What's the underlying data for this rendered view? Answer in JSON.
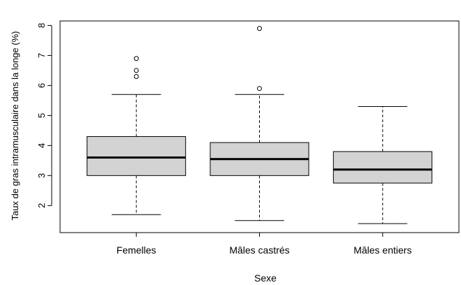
{
  "chart_data": {
    "type": "boxplot",
    "xlabel": "Sexe",
    "ylabel": "Taux de gras intramusculaire dans la longe (%)",
    "ylim": [
      1.1,
      8.15
    ],
    "yticks": [
      2,
      3,
      4,
      5,
      6,
      7,
      8
    ],
    "categories": [
      "Femelles",
      "Mâles castrés",
      "Mâles entiers"
    ],
    "boxes": [
      {
        "category": "Femelles",
        "whisker_low": 1.7,
        "q1": 3.0,
        "median": 3.6,
        "q3": 4.3,
        "whisker_high": 5.7,
        "outliers": [
          6.3,
          6.5,
          6.9
        ]
      },
      {
        "category": "Mâles castrés",
        "whisker_low": 1.5,
        "q1": 3.0,
        "median": 3.55,
        "q3": 4.1,
        "whisker_high": 5.7,
        "outliers": [
          5.9,
          7.9
        ]
      },
      {
        "category": "Mâles entiers",
        "whisker_low": 1.4,
        "q1": 2.75,
        "median": 3.2,
        "q3": 3.8,
        "whisker_high": 5.3,
        "outliers": []
      }
    ],
    "box_fill": "#d3d3d3",
    "grid": false
  }
}
